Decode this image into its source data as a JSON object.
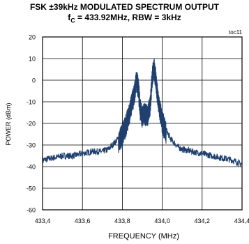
{
  "title_line1": "FSK ±39kHz MODULATED SPECTRUM OUTPUT",
  "title_line2": {
    "f": "f",
    "sub": "C",
    "rest": " = 433.92MHz, RBW = 3kHz"
  },
  "chart_data": {
    "type": "line",
    "tag": "toc11",
    "xlabel": "FREQUENCY (MHz)",
    "ylabel": "POWER (dBm)",
    "xlim": [
      433.4,
      434.4
    ],
    "ylim": [
      -60,
      20
    ],
    "xticks": [
      "433,4",
      "433,6",
      "433,8",
      "434,0",
      "434,2",
      "434,4"
    ],
    "yticks": [
      "20",
      "10",
      "0",
      "-10",
      "-20",
      "-30",
      "-40",
      "-50",
      "-60"
    ],
    "grid": true,
    "line_color": "#1f3f6e",
    "series": [
      {
        "x": [
          433.4,
          433.45,
          433.5,
          433.55,
          433.6,
          433.65,
          433.7,
          433.73,
          433.76,
          433.78,
          433.8,
          433.82,
          433.84,
          433.86,
          433.87,
          433.88,
          433.89,
          433.9,
          433.91,
          433.92,
          433.93,
          433.94,
          433.95,
          433.96,
          433.97,
          433.98,
          434.0,
          434.02,
          434.04,
          434.06,
          434.08,
          434.1,
          434.15,
          434.2,
          434.25,
          434.3,
          434.35,
          434.4
        ],
        "y": [
          -37,
          -36,
          -35,
          -35,
          -34,
          -33,
          -33,
          -32,
          -29,
          -27,
          -24,
          -19,
          -12,
          -5,
          2,
          -2,
          -12,
          -16,
          -14,
          -15,
          -14,
          -10,
          3,
          7,
          0,
          -8,
          -18,
          -23,
          -27,
          -29,
          -31,
          -32,
          -33,
          -34,
          -35,
          -36,
          -37,
          -39
        ]
      }
    ]
  }
}
